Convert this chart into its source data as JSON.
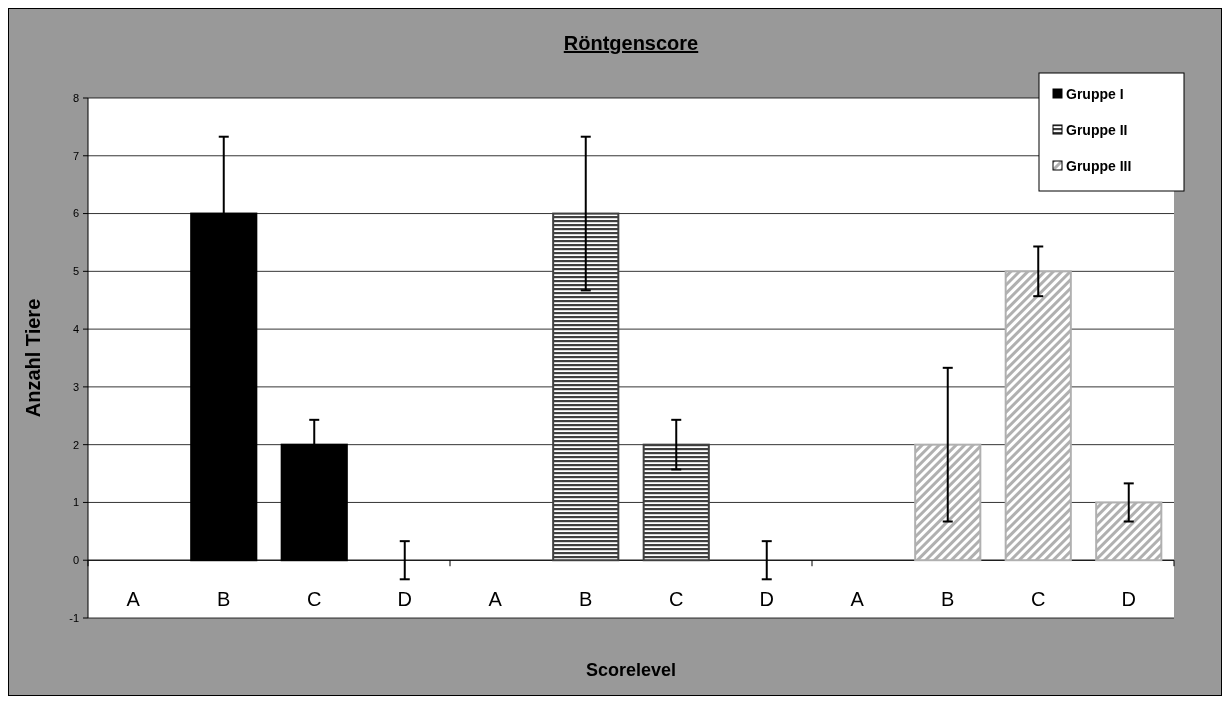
{
  "chart_data": {
    "type": "bar",
    "title": "Röntgenscore",
    "xlabel": "Scorelevel",
    "ylabel": "Anzahl Tiere",
    "categories": [
      "A",
      "B",
      "C",
      "D",
      "A",
      "B",
      "C",
      "D",
      "A",
      "B",
      "C",
      "D"
    ],
    "series": [
      {
        "name": "Gruppe I",
        "color": "#000000",
        "values": [
          0,
          6,
          2,
          0,
          null,
          null,
          null,
          null,
          null,
          null,
          null,
          null
        ],
        "errors": [
          null,
          1.33,
          0.43,
          0.33,
          null,
          null,
          null,
          null,
          null,
          null,
          null,
          null
        ]
      },
      {
        "name": "Gruppe II",
        "color": "#404040",
        "values": [
          null,
          null,
          null,
          null,
          0,
          6,
          2,
          0,
          null,
          null,
          null,
          null
        ],
        "errors": [
          null,
          null,
          null,
          null,
          null,
          1.33,
          0.43,
          0.33,
          null,
          null,
          null,
          null
        ]
      },
      {
        "name": "Gruppe III",
        "color": "#b0b0b0",
        "values": [
          null,
          null,
          null,
          null,
          null,
          null,
          null,
          null,
          0,
          2,
          5,
          1
        ],
        "errors": [
          null,
          null,
          null,
          null,
          null,
          null,
          null,
          null,
          null,
          1.33,
          0.43,
          0.33
        ]
      }
    ],
    "ylim": [
      -1,
      8
    ],
    "yticks": [
      -1,
      0,
      1,
      2,
      3,
      4,
      5,
      6,
      7,
      8
    ],
    "grid": "y",
    "legend": "top right"
  }
}
